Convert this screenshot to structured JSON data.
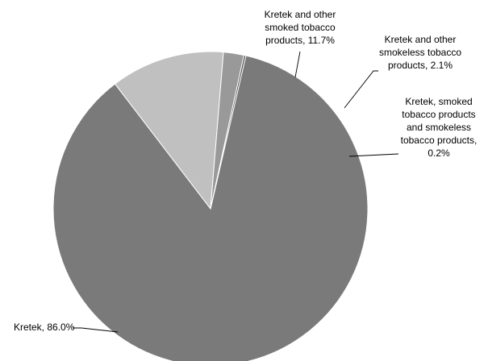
{
  "chart_data": {
    "type": "pie",
    "title": "",
    "slices": [
      {
        "name": "Kretek",
        "value": 86.0,
        "value_label": "86.0%",
        "color": "#7a7a7a",
        "label_lines": [
          "Kretek, 86.0%"
        ]
      },
      {
        "name": "Kretek and other smoked tobacco products",
        "value": 11.7,
        "value_label": "11.7%",
        "color": "#c0c0c0",
        "label_lines": [
          "Kretek and other",
          "smoked tobacco",
          "products, 11.7%"
        ]
      },
      {
        "name": "Kretek and other smokeless tobacco products",
        "value": 2.1,
        "value_label": "2.1%",
        "color": "#999999",
        "label_lines": [
          "Kretek and other",
          "smokeless tobacco",
          "products, 2.1%"
        ]
      },
      {
        "name": "Kretek, smoked tobacco products and smokeless tobacco products",
        "value": 0.2,
        "value_label": "0.2%",
        "color": "#555555",
        "label_lines": [
          "Kretek, smoked",
          "tobacco products",
          "and smokeless",
          "tobacco products,",
          "0.2%"
        ]
      }
    ],
    "start_angle_deg": 13,
    "direction": "clockwise",
    "legend": "none",
    "label_style": "outside with leader lines"
  }
}
